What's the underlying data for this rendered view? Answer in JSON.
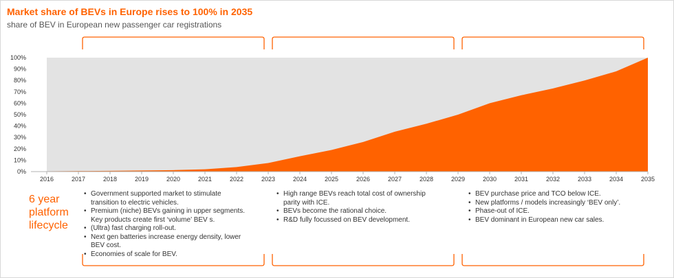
{
  "title": "Market share of BEVs in Europe rises to 100% in 2035",
  "subtitle": "share of BEV in European new passenger car registrations",
  "lifecycle_label": "6 year\nplatform\nlifecycle",
  "colors": {
    "accent": "#ff6200",
    "background_area": "#e3e3e3"
  },
  "phases": [
    {
      "bullets": [
        "Government supported market to stimulate transition to electric vehicles.",
        "Premium (niche) BEVs gaining in upper segments. Key products create first ‘volume’ BEV s.",
        "(Ultra) fast charging roll-out.",
        "Next gen batteries increase energy density, lower BEV cost.",
        "Economies of scale for BEV."
      ]
    },
    {
      "bullets": [
        "High range BEVs reach total cost of ownership parity with ICE.",
        "BEVs become the rational choice.",
        "R&D fully focussed on BEV development."
      ]
    },
    {
      "bullets": [
        "BEV purchase price and TCO below ICE.",
        "New platforms / models increasingly ‘BEV only’.",
        "Phase-out of ICE.",
        "BEV dominant in European new car sales."
      ]
    }
  ],
  "chart_data": {
    "type": "area",
    "title": "Market share of BEVs in Europe rises to 100% in 2035",
    "subtitle": "share of BEV in European new passenger car registrations",
    "x": [
      2016,
      2017,
      2018,
      2019,
      2020,
      2021,
      2022,
      2023,
      2024,
      2025,
      2026,
      2027,
      2028,
      2029,
      2030,
      2031,
      2032,
      2033,
      2034,
      2035
    ],
    "series": [
      {
        "values": [
          0.3,
          0.5,
          0.7,
          1,
          1.3,
          2,
          4,
          7.5,
          13.5,
          19,
          26,
          35,
          42,
          50,
          60,
          67,
          73,
          80,
          88,
          100
        ],
        "color": "#ff6200"
      }
    ],
    "background_series": {
      "values": [
        100,
        100,
        100,
        100,
        100,
        100,
        100,
        100,
        100,
        100,
        100,
        100,
        100,
        100,
        100,
        100,
        100,
        100,
        100,
        100
      ],
      "color": "#e3e3e3"
    },
    "y_ticks": [
      "0%",
      "10%",
      "20%",
      "30%",
      "40%",
      "50%",
      "60%",
      "70%",
      "80%",
      "90%",
      "100%"
    ],
    "ylim": [
      0,
      100
    ],
    "xlabel": "",
    "ylabel": "",
    "grid": false,
    "legend": "none",
    "phase_ranges": [
      [
        2017,
        2023
      ],
      [
        2023,
        2029
      ],
      [
        2029,
        2035
      ]
    ]
  }
}
